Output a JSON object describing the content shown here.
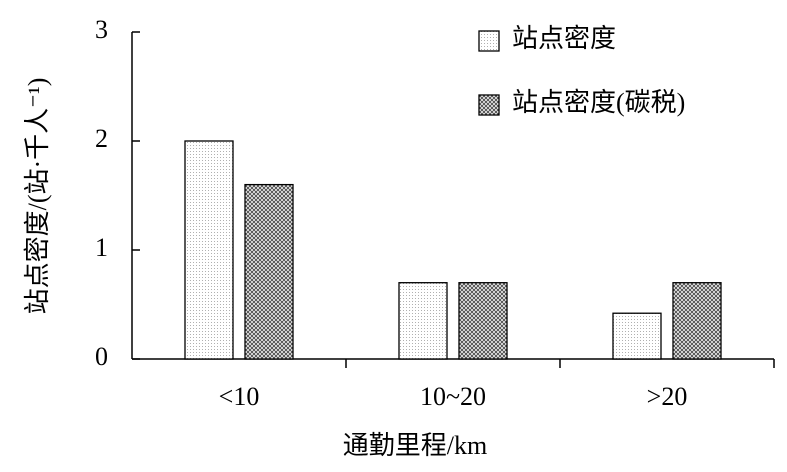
{
  "chart_data": {
    "type": "bar",
    "xlabel": "通勤里程/km",
    "ylabel": "站点密度/(站·千人⁻¹)",
    "categories": [
      "<10",
      "10~20",
      ">20"
    ],
    "series": [
      {
        "name": "站点密度",
        "color": "#b0b0b0",
        "values": [
          2,
          0.7,
          0.42
        ]
      },
      {
        "name": "站点密度(碳税)",
        "color": "#505050",
        "values": [
          1.6,
          0.7,
          0.7
        ]
      }
    ],
    "ylim": [
      0,
      3
    ],
    "yticks": [
      0,
      1,
      2,
      3
    ]
  }
}
